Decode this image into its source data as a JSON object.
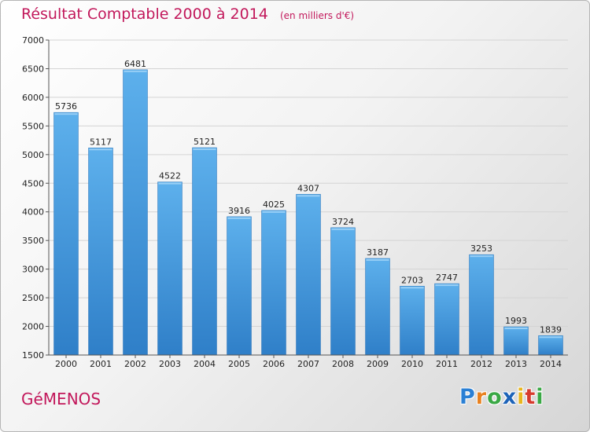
{
  "chart_data": {
    "type": "bar",
    "title": "Résultat Comptable 2000 à 2014",
    "subtitle": "(en milliers d'€)",
    "categories": [
      "2000",
      "2001",
      "2002",
      "2003",
      "2004",
      "2005",
      "2006",
      "2007",
      "2008",
      "2009",
      "2010",
      "2011",
      "2012",
      "2013",
      "2014"
    ],
    "values": [
      5736,
      5117,
      6481,
      4522,
      5121,
      3916,
      4025,
      4307,
      3724,
      3187,
      2703,
      2747,
      3253,
      1993,
      1839
    ],
    "ylim": [
      1500,
      7000
    ],
    "yticks": [
      1500,
      2000,
      2500,
      3000,
      3500,
      4000,
      4500,
      5000,
      5500,
      6000,
      6500,
      7000
    ],
    "grid": true,
    "bar_color": "#4a9fe0"
  },
  "footer": {
    "commune": "GéMENOS",
    "logo_letters": [
      "P",
      "r",
      "o",
      "x",
      "i",
      "t",
      "i"
    ],
    "logo_colors": [
      "#2a7fd4",
      "#e8801e",
      "#3aa845",
      "#1d63b8",
      "#e8b61e",
      "#d63b2e",
      "#3aa845"
    ]
  },
  "colors": {
    "accent": "#c2185b"
  }
}
